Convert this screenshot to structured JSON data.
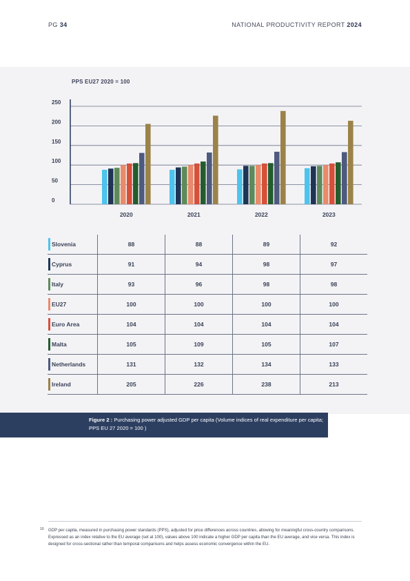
{
  "header": {
    "page_prefix": "PG",
    "page_number": "34",
    "report_title": "NATIONAL PRODUCTIVITY REPORT",
    "report_year": "2024"
  },
  "chart_data": {
    "type": "bar",
    "unit_label": "PPS  EU27  2020 = 100",
    "categories": [
      "2020",
      "2021",
      "2022",
      "2023"
    ],
    "ylim": [
      0,
      250
    ],
    "yticks": [
      0,
      50,
      100,
      150,
      200,
      250
    ],
    "grid": true,
    "series": [
      {
        "name": "Slovenia",
        "color": "#4ec3ec",
        "values": [
          88,
          88,
          89,
          92
        ]
      },
      {
        "name": "Cyprus",
        "color": "#1e3556",
        "values": [
          91,
          94,
          98,
          97
        ]
      },
      {
        "name": "Italy",
        "color": "#5e8a5a",
        "values": [
          93,
          96,
          98,
          98
        ]
      },
      {
        "name": "EU27",
        "color": "#e98a6a",
        "values": [
          100,
          100,
          100,
          100
        ]
      },
      {
        "name": "Euro Area",
        "color": "#d6503a",
        "values": [
          104,
          104,
          104,
          104
        ]
      },
      {
        "name": "Malta",
        "color": "#245c2e",
        "values": [
          105,
          109,
          105,
          107
        ]
      },
      {
        "name": "Netherlands",
        "color": "#4e5a7e",
        "values": [
          131,
          132,
          134,
          133
        ]
      },
      {
        "name": "Ireland",
        "color": "#9b8248",
        "values": [
          205,
          226,
          238,
          213
        ]
      }
    ]
  },
  "caption": {
    "label": "Figure 2 :",
    "text": "Purchasing power adjusted GDP per capita (Volume indices of real expenditure per capita; PPS EU 27 2020 = 100 )"
  },
  "footnote": {
    "mark": "10",
    "text": "GDP per capita, measured in purchasing power standards (PPS), adjusted for price differences across countries, allowing for meaningful cross-country comparisons. Expressed as an index relative to the EU average (set at 100), values above 100 indicate a higher GDP per capita than the EU average, and vice versa. This index is designed for cross-sectional rather than temporal comparisons and helps assess economic convergence within the EU."
  }
}
